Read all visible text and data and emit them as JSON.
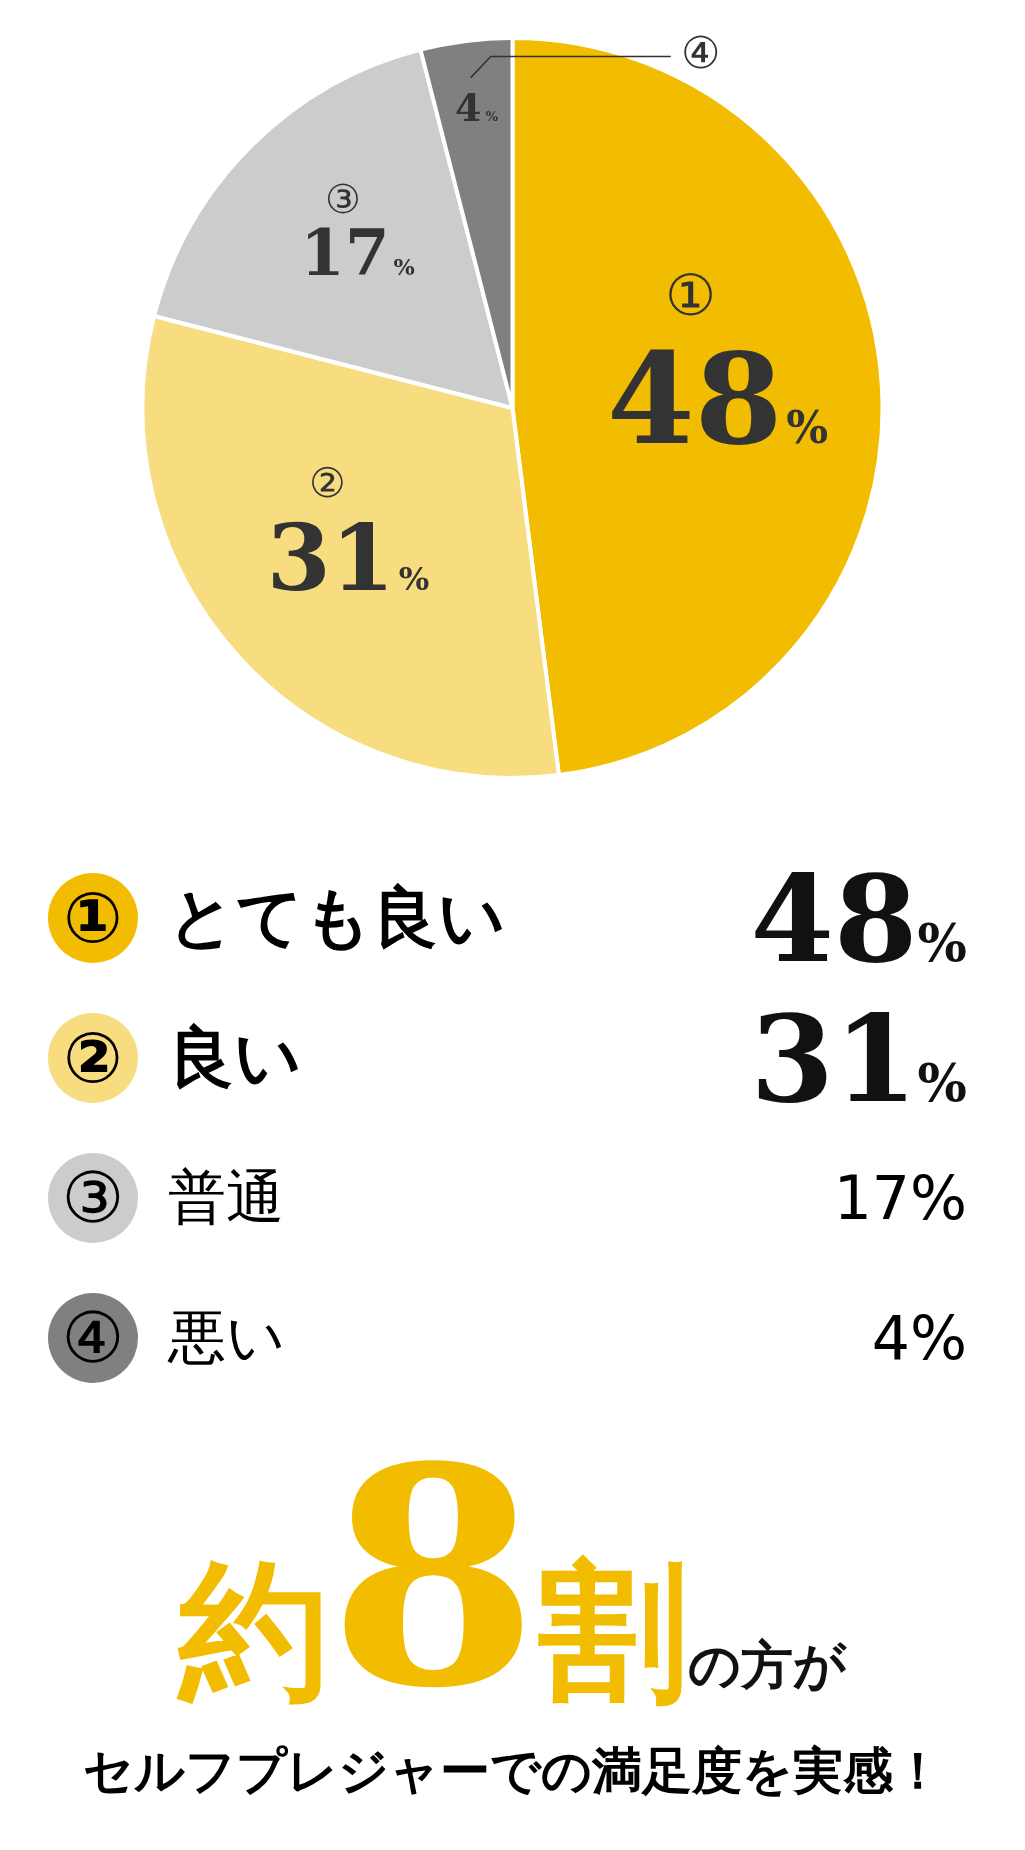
{
  "chart_data": {
    "type": "pie",
    "categories": [
      "とても良い",
      "良い",
      "普通",
      "悪い"
    ],
    "values": [
      48,
      31,
      17,
      4
    ],
    "colors": [
      "#f2bd00",
      "#f7dd80",
      "#cccccc",
      "#808080"
    ],
    "value_labels": [
      "48%",
      "31%",
      "17%",
      "4%"
    ],
    "annotations": [
      "①",
      "②",
      "③",
      "④"
    ],
    "title": "約8割の方が",
    "subtitle": "セルフプレジャーでの満足度を実感！",
    "legend": "bottom"
  }
}
